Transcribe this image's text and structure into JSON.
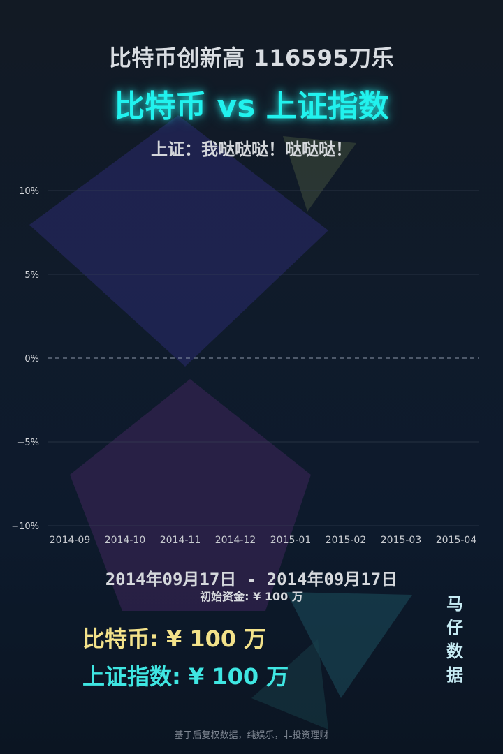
{
  "header": {
    "headline": "比特币创新高 116595刀乐",
    "title": "比特币 vs 上证指数",
    "subtitle": "上证：我哒哒哒！哒哒哒！"
  },
  "chart_data": {
    "type": "line",
    "ylim": [
      -10,
      10
    ],
    "y_ticks": [
      10,
      5,
      0,
      -5,
      -10
    ],
    "y_tick_labels": [
      "10%",
      "5%",
      "0%",
      "−5%",
      "−10%"
    ],
    "x_tick_labels": [
      "2014-09",
      "2014-10",
      "2014-11",
      "2014-12",
      "2015-01",
      "2015-02",
      "2015-03",
      "2015-04"
    ],
    "zero_line": "dashed",
    "series": []
  },
  "info": {
    "date_range": "2014年09月17日 - 2014年09月17日",
    "initial_capital": "初始资金: ¥ 100 万"
  },
  "values": {
    "bitcoin": "比特币: ¥ 100 万",
    "shanghai": "上证指数: ¥ 100 万"
  },
  "watermark": [
    "马",
    "仔",
    "数",
    "据"
  ],
  "footer": "基于后复权数据，纯娱乐，非投资理财",
  "colors": {
    "title_glow": "#21f2ee",
    "bitcoin": "#f3e28a",
    "shanghai": "#3fe6e2"
  }
}
